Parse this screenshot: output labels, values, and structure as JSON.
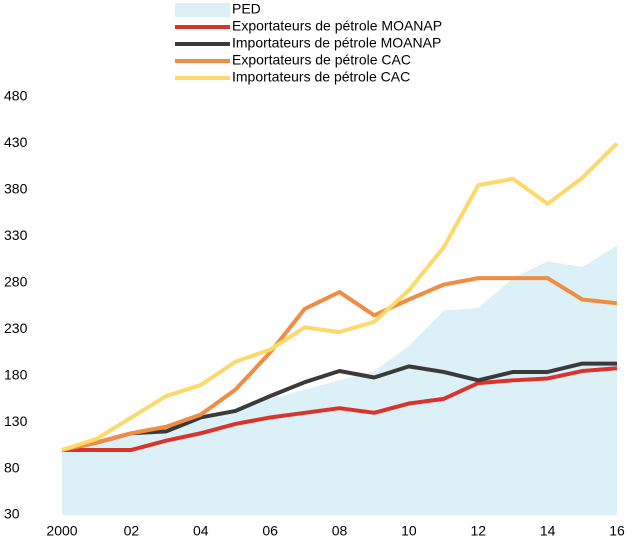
{
  "chart_data": {
    "type": "line",
    "x": [
      2000,
      2001,
      2002,
      2003,
      2004,
      2005,
      2006,
      2007,
      2008,
      2009,
      2010,
      2011,
      2012,
      2013,
      2014,
      2015,
      2016
    ],
    "series": [
      {
        "name": "PED",
        "color": "#dcf0f7",
        "area": true,
        "values": [
          100,
          108,
          115,
          122,
          132,
          145,
          155,
          165,
          175,
          185,
          212,
          250,
          253,
          285,
          303,
          297,
          320
        ]
      },
      {
        "name": "Exportateurs de pétrole MOANAP",
        "color": "#d9342b",
        "values": [
          100,
          100,
          100,
          110,
          118,
          128,
          135,
          140,
          145,
          140,
          150,
          155,
          172,
          175,
          177,
          185,
          188
        ]
      },
      {
        "name": "Importateurs de pétrole MOANAP",
        "color": "#3a3a3a",
        "values": [
          100,
          108,
          118,
          120,
          135,
          142,
          158,
          173,
          185,
          178,
          190,
          184,
          175,
          184,
          184,
          193,
          193
        ]
      },
      {
        "name": "Exportateurs de pétrole CAC",
        "color": "#f08c43",
        "values": [
          100,
          108,
          118,
          125,
          138,
          165,
          205,
          252,
          270,
          245,
          262,
          278,
          285,
          285,
          285,
          262,
          258
        ]
      },
      {
        "name": "Importateurs de pétrole CAC",
        "color": "#fcd96a",
        "values": [
          100,
          112,
          135,
          158,
          170,
          195,
          208,
          232,
          227,
          238,
          272,
          318,
          385,
          392,
          365,
          393,
          430
        ]
      }
    ],
    "xlim": [
      2000,
      2016
    ],
    "xticks": [
      2000,
      {
        "value": 2002,
        "label": "02"
      },
      {
        "value": 2004,
        "label": "04"
      },
      {
        "value": 2006,
        "label": "06"
      },
      {
        "value": 2008,
        "label": "08"
      },
      {
        "value": 2010,
        "label": "10"
      },
      {
        "value": 2012,
        "label": "12"
      },
      {
        "value": 2014,
        "label": "14"
      },
      {
        "value": 2016,
        "label": "16"
      }
    ],
    "ylim": [
      30,
      480
    ],
    "yticks": [
      30,
      80,
      130,
      180,
      230,
      280,
      330,
      380,
      430,
      480
    ]
  }
}
